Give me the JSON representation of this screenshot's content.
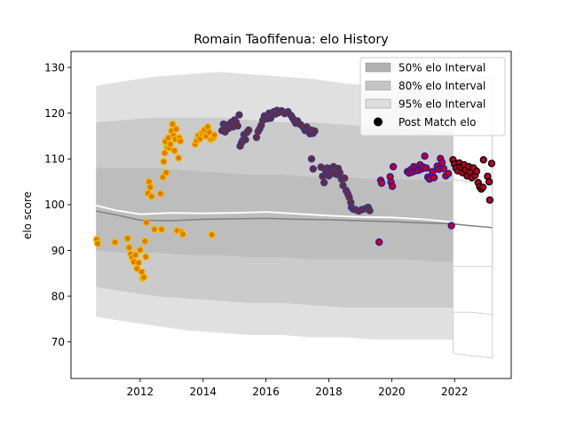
{
  "chart_data": {
    "type": "scatter",
    "title": "Romain Taofifenua: elo History",
    "xlabel": "",
    "ylabel": "elo score",
    "xlim": [
      2009.8,
      2023.8
    ],
    "ylim": [
      62,
      133.5
    ],
    "xticks": [
      2012,
      2014,
      2016,
      2018,
      2020,
      2022
    ],
    "yticks": [
      70,
      80,
      90,
      100,
      110,
      120,
      130
    ],
    "legend_position": "top-right",
    "legend": [
      {
        "name": "50% elo Interval",
        "kind": "patch",
        "color": "#b0b0b0"
      },
      {
        "name": "80% elo Interval",
        "kind": "patch",
        "color": "#c4c4c4"
      },
      {
        "name": "95% elo Interval",
        "kind": "patch",
        "color": "#dedede"
      },
      {
        "name": "Post Match elo",
        "kind": "marker",
        "color": "#000000"
      }
    ],
    "colors": {
      "band95": "#e0e0e0",
      "band80": "#cbcbcb",
      "band50": "#bdbdbd",
      "mean_line": "#ffffff",
      "alt_line": "#808080",
      "early_fill": "#e07b00",
      "early_edge": "#f2c200",
      "mid_fill": "#6a2a3a",
      "mid_edge": "#3a3a8a",
      "late_fill": "#c00020",
      "late_edge": "#1a1aaa",
      "last_fill": "#b00020",
      "last_edge": "#000000"
    },
    "bands": {
      "x": [
        2010.6,
        2011.5,
        2012.5,
        2013.5,
        2014.5,
        2015.5,
        2016.5,
        2017.5,
        2018.5,
        2019.5,
        2020.5,
        2021.5,
        2021.95
      ],
      "p95_upper": [
        126,
        127,
        128,
        128.5,
        129,
        128.5,
        128,
        127.5,
        126.5,
        126,
        125.5,
        126,
        126
      ],
      "p95_lower": [
        75.5,
        74.5,
        73.5,
        72.5,
        72,
        71.5,
        71.5,
        71,
        71,
        70.5,
        70.5,
        70.5,
        70.5
      ],
      "p80_upper": [
        118,
        118.5,
        119,
        119,
        119,
        118.5,
        118,
        118,
        117.5,
        117,
        116.5,
        116,
        116
      ],
      "p80_lower": [
        82,
        81,
        80,
        79.5,
        79,
        78.5,
        78.5,
        78,
        77.5,
        77.5,
        77.5,
        77.5,
        77.5
      ],
      "p50_upper": [
        108,
        108,
        108,
        107.5,
        107,
        106.5,
        106.5,
        106,
        106,
        105.5,
        105.5,
        105,
        105
      ],
      "p50_lower": [
        90,
        89.5,
        89.5,
        89,
        89,
        88.5,
        88.5,
        88,
        88,
        88,
        88,
        87.5,
        87.5
      ]
    },
    "late_bands": {
      "x": [
        2021.95,
        2022.5,
        2023.2
      ],
      "p95_upper": [
        127,
        127.5,
        128
      ],
      "p95_lower": [
        67.5,
        67,
        66.5
      ],
      "p80_upper": [
        116.5,
        116.5,
        116
      ],
      "p80_lower": [
        76.5,
        76.5,
        76
      ],
      "p50_upper": [
        105.5,
        105,
        105
      ],
      "p50_lower": [
        86.5,
        86.5,
        86.5
      ]
    },
    "mean_line": {
      "x": [
        2010.6,
        2011.2,
        2012.0,
        2013.0,
        2014.0,
        2015.0,
        2016.0,
        2017.0,
        2018.0,
        2019.0,
        2020.0,
        2021.0,
        2021.95,
        2022.5,
        2023.2
      ],
      "y": [
        99.8,
        98.8,
        97.9,
        98.2,
        98.1,
        98.2,
        98.4,
        98.0,
        97.6,
        97.3,
        97.2,
        96.8,
        96.2,
        95.8,
        95.3
      ]
    },
    "alt_line": {
      "x": [
        2010.6,
        2011.2,
        2012.0,
        2013.0,
        2014.0,
        2015.0,
        2016.0,
        2017.0,
        2018.0,
        2019.0,
        2020.0,
        2021.0,
        2021.95,
        2022.5,
        2023.2
      ],
      "y": [
        98.6,
        97.8,
        96.6,
        96.5,
        96.8,
        96.9,
        97.0,
        96.8,
        96.7,
        96.5,
        96.3,
        96.0,
        95.8,
        95.4,
        95.0
      ]
    },
    "series": [
      {
        "group": "2010-2014",
        "points": [
          {
            "x": 2010.62,
            "y": 92.4
          },
          {
            "x": 2010.65,
            "y": 91.5
          },
          {
            "x": 2011.2,
            "y": 91.8
          },
          {
            "x": 2011.6,
            "y": 92.6
          },
          {
            "x": 2011.65,
            "y": 90.6
          },
          {
            "x": 2011.7,
            "y": 89.2
          },
          {
            "x": 2011.75,
            "y": 88.4
          },
          {
            "x": 2011.8,
            "y": 87.5
          },
          {
            "x": 2011.85,
            "y": 89.0
          },
          {
            "x": 2011.9,
            "y": 86.0
          },
          {
            "x": 2011.95,
            "y": 87.3
          },
          {
            "x": 2012.0,
            "y": 90.1
          },
          {
            "x": 2012.05,
            "y": 85.3
          },
          {
            "x": 2012.08,
            "y": 83.9
          },
          {
            "x": 2012.12,
            "y": 84.1
          },
          {
            "x": 2012.15,
            "y": 92.0
          },
          {
            "x": 2012.18,
            "y": 88.6
          },
          {
            "x": 2012.2,
            "y": 96.1
          },
          {
            "x": 2012.25,
            "y": 102.5
          },
          {
            "x": 2012.28,
            "y": 105.0
          },
          {
            "x": 2012.32,
            "y": 103.8
          },
          {
            "x": 2012.36,
            "y": 101.8
          },
          {
            "x": 2012.45,
            "y": 94.6
          },
          {
            "x": 2012.65,
            "y": 102.4
          },
          {
            "x": 2012.68,
            "y": 94.6
          },
          {
            "x": 2012.72,
            "y": 106.0
          },
          {
            "x": 2012.75,
            "y": 109.4
          },
          {
            "x": 2012.78,
            "y": 111.3
          },
          {
            "x": 2012.8,
            "y": 113.8
          },
          {
            "x": 2012.83,
            "y": 107.0
          },
          {
            "x": 2012.86,
            "y": 112.5
          },
          {
            "x": 2012.9,
            "y": 114.6
          },
          {
            "x": 2012.93,
            "y": 112.4
          },
          {
            "x": 2012.96,
            "y": 113.2
          },
          {
            "x": 2013.0,
            "y": 116.1
          },
          {
            "x": 2013.03,
            "y": 117.6
          },
          {
            "x": 2013.06,
            "y": 115.1
          },
          {
            "x": 2013.09,
            "y": 111.8
          },
          {
            "x": 2013.12,
            "y": 114.3
          },
          {
            "x": 2013.15,
            "y": 116.5
          },
          {
            "x": 2013.18,
            "y": 94.3
          },
          {
            "x": 2013.22,
            "y": 110.2
          },
          {
            "x": 2013.25,
            "y": 114.6
          },
          {
            "x": 2013.28,
            "y": 113.9
          },
          {
            "x": 2013.32,
            "y": 94.0
          },
          {
            "x": 2013.36,
            "y": 93.5
          },
          {
            "x": 2013.75,
            "y": 113.2
          },
          {
            "x": 2013.8,
            "y": 114.0
          },
          {
            "x": 2013.85,
            "y": 115.1
          },
          {
            "x": 2013.9,
            "y": 114.4
          },
          {
            "x": 2013.95,
            "y": 115.6
          },
          {
            "x": 2014.0,
            "y": 116.0
          },
          {
            "x": 2014.05,
            "y": 116.4
          },
          {
            "x": 2014.1,
            "y": 115.0
          },
          {
            "x": 2014.15,
            "y": 117.0
          },
          {
            "x": 2014.2,
            "y": 115.8
          },
          {
            "x": 2014.25,
            "y": 114.3
          },
          {
            "x": 2014.28,
            "y": 93.4
          },
          {
            "x": 2014.32,
            "y": 114.6
          },
          {
            "x": 2014.36,
            "y": 115.2
          }
        ]
      },
      {
        "group": "2014-2019",
        "points": [
          {
            "x": 2014.6,
            "y": 116.2
          },
          {
            "x": 2014.65,
            "y": 117.6
          },
          {
            "x": 2014.7,
            "y": 115.9
          },
          {
            "x": 2014.75,
            "y": 117.4
          },
          {
            "x": 2014.8,
            "y": 116.6
          },
          {
            "x": 2014.9,
            "y": 118.0
          },
          {
            "x": 2014.95,
            "y": 117.0
          },
          {
            "x": 2015.0,
            "y": 118.5
          },
          {
            "x": 2015.05,
            "y": 118.0
          },
          {
            "x": 2015.1,
            "y": 117.2
          },
          {
            "x": 2015.15,
            "y": 119.6
          },
          {
            "x": 2015.18,
            "y": 112.8
          },
          {
            "x": 2015.22,
            "y": 113.5
          },
          {
            "x": 2015.26,
            "y": 114.0
          },
          {
            "x": 2015.3,
            "y": 115.3
          },
          {
            "x": 2015.35,
            "y": 114.2
          },
          {
            "x": 2015.4,
            "y": 115.8
          },
          {
            "x": 2015.45,
            "y": 116.3
          },
          {
            "x": 2015.7,
            "y": 114.7
          },
          {
            "x": 2015.75,
            "y": 116.0
          },
          {
            "x": 2015.8,
            "y": 116.6
          },
          {
            "x": 2015.85,
            "y": 117.3
          },
          {
            "x": 2015.9,
            "y": 118.4
          },
          {
            "x": 2015.95,
            "y": 119.4
          },
          {
            "x": 2016.0,
            "y": 119.1
          },
          {
            "x": 2016.05,
            "y": 118.8
          },
          {
            "x": 2016.1,
            "y": 120.0
          },
          {
            "x": 2016.15,
            "y": 118.9
          },
          {
            "x": 2016.2,
            "y": 119.6
          },
          {
            "x": 2016.25,
            "y": 120.3
          },
          {
            "x": 2016.3,
            "y": 119.8
          },
          {
            "x": 2016.35,
            "y": 120.6
          },
          {
            "x": 2016.4,
            "y": 120.1
          },
          {
            "x": 2016.5,
            "y": 120.5
          },
          {
            "x": 2016.6,
            "y": 119.9
          },
          {
            "x": 2016.7,
            "y": 120.3
          },
          {
            "x": 2016.8,
            "y": 119.5
          },
          {
            "x": 2016.85,
            "y": 118.9
          },
          {
            "x": 2016.9,
            "y": 118.4
          },
          {
            "x": 2016.95,
            "y": 117.8
          },
          {
            "x": 2017.0,
            "y": 118.3
          },
          {
            "x": 2017.1,
            "y": 117.5
          },
          {
            "x": 2017.2,
            "y": 116.8
          },
          {
            "x": 2017.25,
            "y": 116.2
          },
          {
            "x": 2017.3,
            "y": 117.0
          },
          {
            "x": 2017.35,
            "y": 116.0
          },
          {
            "x": 2017.4,
            "y": 115.5
          },
          {
            "x": 2017.45,
            "y": 116.3
          },
          {
            "x": 2017.5,
            "y": 115.6
          },
          {
            "x": 2017.55,
            "y": 116.1
          },
          {
            "x": 2017.45,
            "y": 110.0
          },
          {
            "x": 2017.5,
            "y": 107.8
          },
          {
            "x": 2017.75,
            "y": 108.2
          },
          {
            "x": 2017.8,
            "y": 106.2
          },
          {
            "x": 2017.85,
            "y": 104.8
          },
          {
            "x": 2017.9,
            "y": 107.5
          },
          {
            "x": 2017.95,
            "y": 108.0
          },
          {
            "x": 2018.0,
            "y": 106.3
          },
          {
            "x": 2018.05,
            "y": 107.9
          },
          {
            "x": 2018.1,
            "y": 106.8
          },
          {
            "x": 2018.15,
            "y": 108.3
          },
          {
            "x": 2018.2,
            "y": 107.3
          },
          {
            "x": 2018.25,
            "y": 106.6
          },
          {
            "x": 2018.3,
            "y": 107.9
          },
          {
            "x": 2018.35,
            "y": 107.0
          },
          {
            "x": 2018.4,
            "y": 105.6
          },
          {
            "x": 2018.45,
            "y": 104.2
          },
          {
            "x": 2018.5,
            "y": 105.8
          },
          {
            "x": 2018.55,
            "y": 103.1
          },
          {
            "x": 2018.6,
            "y": 102.4
          },
          {
            "x": 2018.65,
            "y": 101.6
          },
          {
            "x": 2018.7,
            "y": 100.5
          },
          {
            "x": 2018.72,
            "y": 99.4
          },
          {
            "x": 2018.78,
            "y": 99.0
          },
          {
            "x": 2018.85,
            "y": 98.9
          },
          {
            "x": 2018.95,
            "y": 98.6
          },
          {
            "x": 2019.05,
            "y": 98.9
          },
          {
            "x": 2019.15,
            "y": 99.1
          },
          {
            "x": 2019.25,
            "y": 99.4
          },
          {
            "x": 2019.3,
            "y": 98.7
          }
        ]
      },
      {
        "group": "2019-2022",
        "points": [
          {
            "x": 2019.6,
            "y": 91.8
          },
          {
            "x": 2019.65,
            "y": 105.3
          },
          {
            "x": 2019.68,
            "y": 104.7
          },
          {
            "x": 2019.95,
            "y": 106.1
          },
          {
            "x": 2019.98,
            "y": 104.9
          },
          {
            "x": 2020.02,
            "y": 104.0
          },
          {
            "x": 2020.05,
            "y": 108.3
          },
          {
            "x": 2020.5,
            "y": 107.2
          },
          {
            "x": 2020.55,
            "y": 106.9
          },
          {
            "x": 2020.6,
            "y": 107.6
          },
          {
            "x": 2020.65,
            "y": 107.1
          },
          {
            "x": 2020.7,
            "y": 108.3
          },
          {
            "x": 2020.75,
            "y": 107.4
          },
          {
            "x": 2020.8,
            "y": 108.0
          },
          {
            "x": 2020.85,
            "y": 107.5
          },
          {
            "x": 2020.9,
            "y": 108.7
          },
          {
            "x": 2020.95,
            "y": 107.8
          },
          {
            "x": 2021.0,
            "y": 108.2
          },
          {
            "x": 2021.05,
            "y": 110.6
          },
          {
            "x": 2021.1,
            "y": 108.0
          },
          {
            "x": 2021.15,
            "y": 106.0
          },
          {
            "x": 2021.2,
            "y": 105.6
          },
          {
            "x": 2021.3,
            "y": 107.2
          },
          {
            "x": 2021.35,
            "y": 105.9
          },
          {
            "x": 2021.45,
            "y": 108.4
          },
          {
            "x": 2021.5,
            "y": 107.7
          },
          {
            "x": 2021.55,
            "y": 110.1
          },
          {
            "x": 2021.6,
            "y": 109.2
          },
          {
            "x": 2021.65,
            "y": 107.9
          },
          {
            "x": 2021.72,
            "y": 106.3
          },
          {
            "x": 2021.8,
            "y": 106.8
          },
          {
            "x": 2021.9,
            "y": 95.4
          }
        ]
      },
      {
        "group": "2022-2023",
        "points": [
          {
            "x": 2021.95,
            "y": 109.8
          },
          {
            "x": 2022.0,
            "y": 108.9
          },
          {
            "x": 2022.05,
            "y": 108.0
          },
          {
            "x": 2022.1,
            "y": 107.4
          },
          {
            "x": 2022.15,
            "y": 109.1
          },
          {
            "x": 2022.2,
            "y": 108.2
          },
          {
            "x": 2022.25,
            "y": 107.0
          },
          {
            "x": 2022.3,
            "y": 108.7
          },
          {
            "x": 2022.35,
            "y": 107.6
          },
          {
            "x": 2022.4,
            "y": 106.3
          },
          {
            "x": 2022.45,
            "y": 108.3
          },
          {
            "x": 2022.5,
            "y": 107.1
          },
          {
            "x": 2022.55,
            "y": 105.9
          },
          {
            "x": 2022.6,
            "y": 108.0
          },
          {
            "x": 2022.65,
            "y": 106.4
          },
          {
            "x": 2022.7,
            "y": 107.3
          },
          {
            "x": 2022.75,
            "y": 104.8
          },
          {
            "x": 2022.8,
            "y": 103.9
          },
          {
            "x": 2022.85,
            "y": 103.4
          },
          {
            "x": 2022.9,
            "y": 103.8
          },
          {
            "x": 2022.92,
            "y": 109.8
          },
          {
            "x": 2023.05,
            "y": 106.2
          },
          {
            "x": 2023.1,
            "y": 105.0
          },
          {
            "x": 2023.12,
            "y": 101.0
          },
          {
            "x": 2023.18,
            "y": 109.0
          }
        ]
      }
    ]
  }
}
